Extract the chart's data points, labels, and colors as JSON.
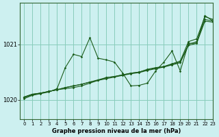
{
  "title": "Graphe pression niveau de la mer (hPa)",
  "bg_color": "#cdf0f0",
  "grid_color": "#88ccbb",
  "line_color": "#1a5c1a",
  "xlim": [
    -0.5,
    23
  ],
  "ylim": [
    1019.65,
    1021.75
  ],
  "yticks": [
    1020,
    1021
  ],
  "xticks": [
    0,
    1,
    2,
    3,
    4,
    5,
    6,
    7,
    8,
    9,
    10,
    11,
    12,
    13,
    14,
    15,
    16,
    17,
    18,
    19,
    20,
    21,
    22,
    23
  ],
  "series": [
    [
      1020.05,
      1020.1,
      1020.12,
      1020.15,
      1020.18,
      1020.2,
      1020.22,
      1020.25,
      1020.3,
      1020.35,
      1020.4,
      1020.42,
      1020.45,
      1020.48,
      1020.5,
      1020.55,
      1020.58,
      1020.6,
      1020.65,
      1020.7,
      1021.05,
      1021.1,
      1021.5,
      1021.45
    ],
    [
      1020.05,
      1020.1,
      1020.12,
      1020.15,
      1020.18,
      1020.22,
      1020.25,
      1020.28,
      1020.32,
      1020.36,
      1020.4,
      1020.42,
      1020.45,
      1020.48,
      1020.5,
      1020.54,
      1020.57,
      1020.6,
      1020.64,
      1020.68,
      1021.0,
      1021.05,
      1021.45,
      1021.42
    ],
    [
      1020.04,
      1020.09,
      1020.12,
      1020.15,
      1020.18,
      1020.22,
      1020.25,
      1020.28,
      1020.32,
      1020.35,
      1020.38,
      1020.41,
      1020.44,
      1020.47,
      1020.49,
      1020.53,
      1020.56,
      1020.59,
      1020.63,
      1020.67,
      1020.98,
      1021.02,
      1021.42,
      1021.4
    ],
    [
      1020.02,
      1020.08,
      1020.11,
      1020.14,
      1020.2,
      1020.58,
      1020.82,
      1020.78,
      1021.12,
      1020.75,
      1020.72,
      1020.68,
      1020.48,
      1020.25,
      1020.26,
      1020.3,
      1020.52,
      1020.68,
      1020.88,
      1020.52,
      1021.02,
      1021.02,
      1021.52,
      1021.42
    ]
  ]
}
